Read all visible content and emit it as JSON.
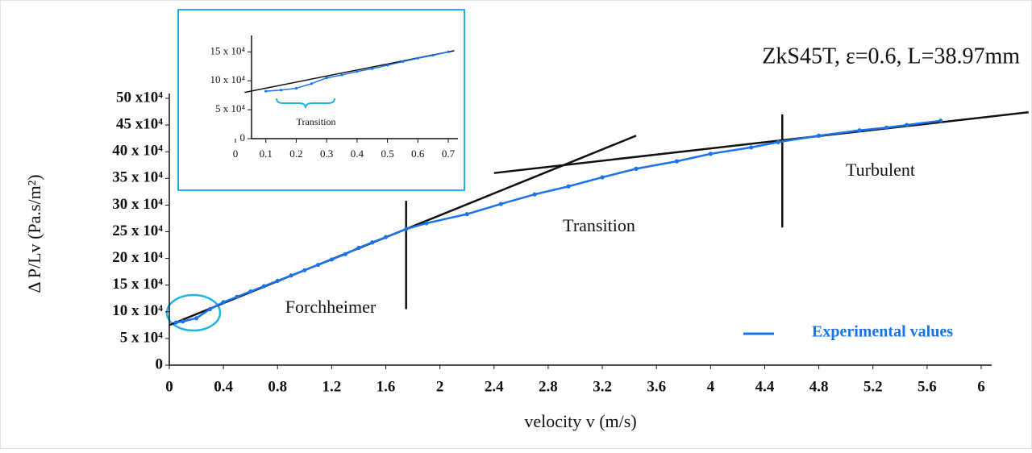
{
  "chart_data": [
    {
      "type": "line",
      "title": "ZkS45T, ε=0.6, L=38.97mm",
      "x_label": "velocity v (m/s)",
      "y_label": "Δ P/Lv (Pa.s/m²)",
      "annotations": [
        "Forchheimer",
        "Transition",
        "Turbulent"
      ],
      "xlim": [
        0,
        6
      ],
      "ylim": [
        0,
        50
      ],
      "xticks": [
        0,
        0.4,
        0.8,
        1.2,
        1.6,
        2,
        2.4,
        2.8,
        3.2,
        3.6,
        4,
        4.4,
        4.8,
        5.2,
        5.6,
        6
      ],
      "yticks": [
        0,
        {
          "value": 5,
          "label": "5 x 10⁴"
        },
        {
          "value": 10,
          "label": "10 x 10⁴"
        },
        {
          "value": 15,
          "label": "15 x 10⁴"
        },
        {
          "value": 20,
          "label": "20 x 10⁴"
        },
        {
          "value": 25,
          "label": "25 x 10⁴"
        },
        {
          "value": 30,
          "label": "30 x 10⁴"
        },
        {
          "value": 35,
          "label": "35 x 10⁴"
        },
        {
          "value": 40,
          "label": "40 x 10⁴"
        },
        {
          "value": 45,
          "label": "45 x10⁴"
        },
        {
          "value": 50,
          "label": "50 x10⁴"
        }
      ],
      "legend": "lower right",
      "series": [
        {
          "name": "Experimental values",
          "color": "#1a73e8",
          "x": [
            0.05,
            0.1,
            0.2,
            0.3,
            0.4,
            0.5,
            0.6,
            0.7,
            0.8,
            0.9,
            1.0,
            1.1,
            1.2,
            1.3,
            1.4,
            1.5,
            1.6,
            1.75,
            1.9,
            2.2,
            2.45,
            2.7,
            2.95,
            3.2,
            3.45,
            3.75,
            4.0,
            4.3,
            4.5,
            4.8,
            5.1,
            5.3,
            5.45,
            5.7
          ],
          "values": [
            8,
            8.2,
            8.8,
            10.5,
            11.8,
            12.8,
            13.8,
            14.8,
            15.8,
            16.8,
            17.8,
            18.8,
            19.8,
            20.8,
            22,
            23,
            24,
            25.5,
            26.6,
            28.3,
            30.2,
            32,
            33.5,
            35.2,
            36.8,
            38.2,
            39.6,
            40.8,
            41.8,
            43,
            44,
            44.5,
            45,
            45.8
          ]
        }
      ],
      "fit_lines": [
        {
          "color": "#111111",
          "x": [
            0,
            3.45
          ],
          "values": [
            7.5,
            43
          ]
        },
        {
          "color": "#111111",
          "x": [
            2.4,
            6.35
          ],
          "values": [
            36,
            47.4
          ]
        },
        {
          "color": "#111111",
          "x": [
            1.75,
            1.75
          ],
          "values": [
            10.5,
            30.8
          ]
        },
        {
          "color": "#111111",
          "x": [
            4.53,
            4.53
          ],
          "values": [
            25.8,
            47
          ]
        }
      ]
    },
    {
      "type": "line",
      "annotations": [
        "Transition"
      ],
      "xlim": [
        0,
        0.7
      ],
      "ylim": [
        0,
        17
      ],
      "xticks": [
        0,
        0.1,
        0.2,
        0.3,
        0.4,
        0.5,
        0.6,
        0.7
      ],
      "yticks": [
        0,
        {
          "value": 5,
          "label": "5 x 10⁴"
        },
        {
          "value": 10,
          "label": "10 x 10⁴"
        },
        {
          "value": 15,
          "label": "15 x 10⁴"
        }
      ],
      "series": [
        {
          "color": "#1a73e8",
          "x": [
            0.1,
            0.15,
            0.2,
            0.25,
            0.3,
            0.35,
            0.4,
            0.45,
            0.5,
            0.55,
            0.6,
            0.65,
            0.7
          ],
          "values": [
            8.2,
            8.4,
            8.7,
            9.5,
            10.5,
            11,
            11.6,
            12.1,
            12.7,
            13.3,
            13.9,
            14.4,
            15
          ]
        }
      ],
      "fit_lines": [
        {
          "color": "#111111",
          "x": [
            0.03,
            0.72
          ],
          "values": [
            8,
            15.2
          ]
        }
      ]
    }
  ]
}
